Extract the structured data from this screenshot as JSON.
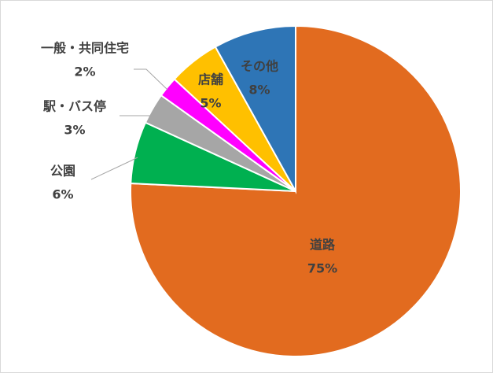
{
  "chart_data": {
    "type": "pie",
    "categories": [
      "道路",
      "公園",
      "駅・バス停",
      "一般・共同住宅",
      "店舗",
      "その他"
    ],
    "values": [
      75,
      6,
      3,
      2,
      5,
      8
    ],
    "value_labels": [
      "75%",
      "6%",
      "3%",
      "2%",
      "5%",
      "8%"
    ],
    "colors": [
      "#e26b1f",
      "#00b050",
      "#a6a6a6",
      "#ff00ff",
      "#ffc000",
      "#2e75b6"
    ]
  }
}
